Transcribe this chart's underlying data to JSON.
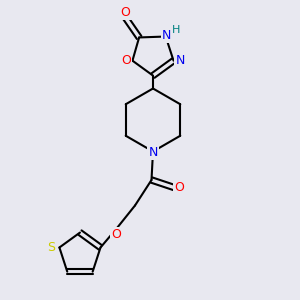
{
  "bg_color": "#e8e8f0",
  "atom_colors": {
    "C": "#000000",
    "N": "#0000ee",
    "O": "#ff0000",
    "S": "#cccc00",
    "H": "#008080"
  },
  "bond_color": "#000000",
  "bond_width": 1.5
}
